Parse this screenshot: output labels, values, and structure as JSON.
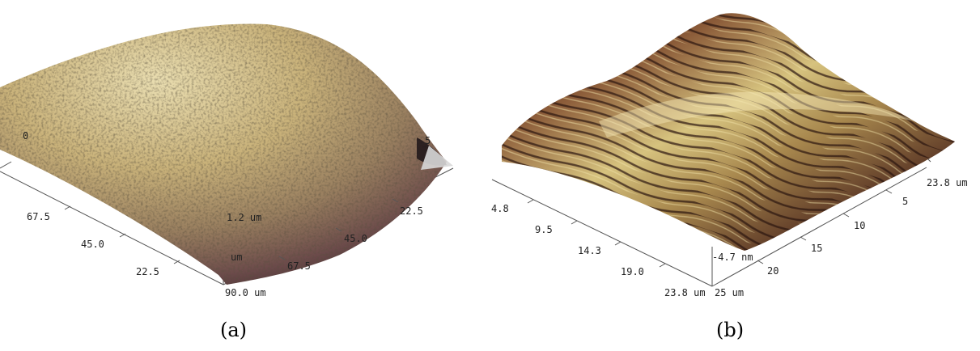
{
  "panel_a": {
    "caption": "(a)",
    "left_axis_ticks": [
      "67.5",
      "45.0",
      "22.5"
    ],
    "right_axis_ticks": [
      "22.5",
      "45.0",
      "67.5",
      "90.0 um"
    ],
    "z_ticks": [
      "1.2 um",
      "um"
    ],
    "partial_labels": [
      "0",
      "5"
    ]
  },
  "panel_b": {
    "caption": "(b)",
    "left_axis_ticks": [
      "4.8",
      "9.5",
      "14.3",
      "19.0",
      "23.8 um"
    ],
    "right_axis_ticks": [
      "5",
      "10",
      "15",
      "20",
      "25 um"
    ],
    "z_ticks": [
      "-4.7 nm"
    ],
    "top_right_label": "23.8 um"
  }
}
